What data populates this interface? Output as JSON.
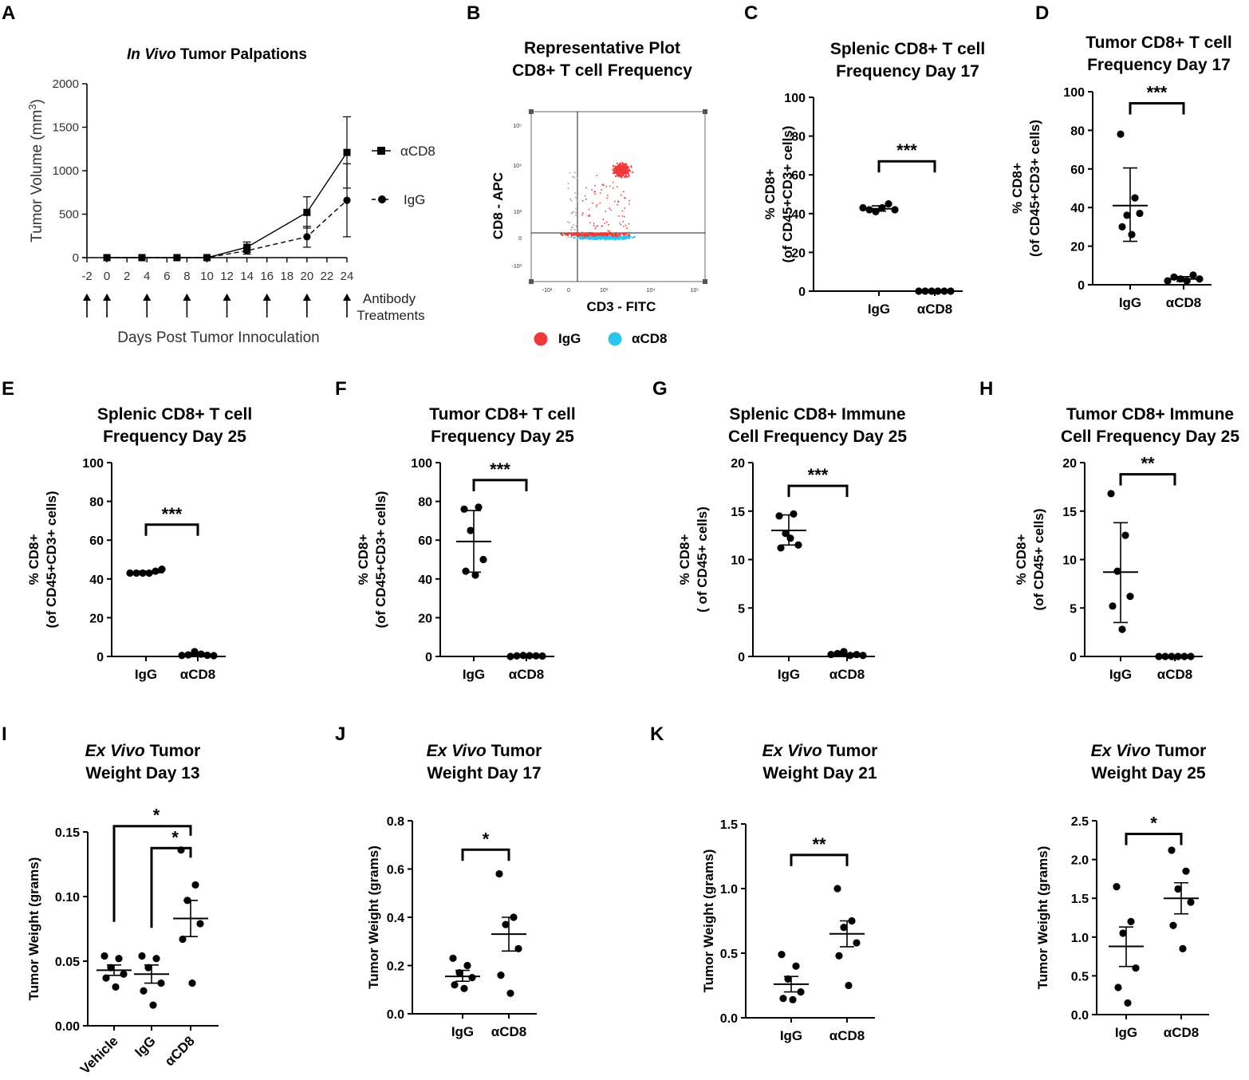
{
  "chart_data": [
    {
      "id": "A",
      "type": "line",
      "panel_label": "A",
      "title_italic": "In Vivo",
      "title_rest": " Tumor Palpations",
      "ylabel": "Tumor Volume (mm",
      "ylabel_sup": "3",
      "ylabel_close": ")",
      "xlabel": "Days Post Tumor Innoculation",
      "ylim": [
        0,
        2000
      ],
      "yticks": [
        "0",
        "500",
        "1000",
        "1500",
        "2000"
      ],
      "xlim": [
        -2,
        24
      ],
      "xticks": [
        "-2",
        "0",
        "2",
        "4",
        "6",
        "8",
        "10",
        "12",
        "14",
        "16",
        "18",
        "20",
        "22",
        "24"
      ],
      "arrow_days": [
        -2,
        0,
        4,
        8,
        12,
        16,
        20,
        24
      ],
      "arrow_label": [
        "Antibody",
        "Treatments"
      ],
      "series": [
        {
          "name": "αCD8",
          "marker": "square",
          "dash": "solid",
          "x": [
            0,
            3.5,
            7,
            10,
            14,
            20,
            24
          ],
          "y": [
            0,
            0,
            0,
            0,
            120,
            520,
            1210
          ],
          "err": [
            0,
            0,
            0,
            0,
            60,
            180,
            410
          ]
        },
        {
          "name": "IgG",
          "marker": "circle",
          "dash": "dashed",
          "x": [
            0,
            3.5,
            7,
            10,
            14,
            20,
            24
          ],
          "y": [
            0,
            0,
            0,
            0,
            80,
            240,
            660
          ],
          "err": [
            0,
            0,
            0,
            0,
            40,
            120,
            420
          ]
        }
      ]
    },
    {
      "id": "B",
      "type": "scatter",
      "panel_label": "B",
      "title": [
        "Representative Plot",
        "CD8+ T cell Frequency"
      ],
      "xlabel": "CD3 - FITC",
      "ylabel": "CD8 - APC",
      "yticks": [
        "10⁵",
        "10⁴",
        "10³",
        "0",
        "-10³"
      ],
      "xticks": [
        "-10³",
        "0",
        "10³",
        "10⁴",
        "10⁵"
      ],
      "legend": [
        {
          "name": "IgG",
          "color": "#f0393b"
        },
        {
          "name": "αCD8",
          "color": "#2fc3ef"
        }
      ]
    },
    {
      "id": "C",
      "type": "scatter",
      "panel_label": "C",
      "title": [
        "Splenic CD8+ T cell",
        "Frequency Day 17"
      ],
      "ylabel": [
        "% CD8+",
        "(of CD45+CD3+ cells)"
      ],
      "ylim": [
        0,
        100
      ],
      "yticks": [
        "0",
        "20",
        "40",
        "60",
        "80",
        "100"
      ],
      "categories": [
        "IgG",
        "αCD8"
      ],
      "groups": [
        {
          "values": [
            43,
            42,
            41,
            43,
            45,
            42
          ],
          "mean": 42.5,
          "err_low": 41.3,
          "err_high": 44
        },
        {
          "values": [
            0,
            0,
            0,
            0,
            0,
            0
          ],
          "mean": 0,
          "err_low": 0,
          "err_high": 0
        }
      ],
      "significance": [
        {
          "from": 0,
          "to": 1,
          "label": "***",
          "y": 67
        }
      ]
    },
    {
      "id": "D",
      "type": "scatter",
      "panel_label": "D",
      "title": [
        "Tumor CD8+ T cell",
        "Frequency Day 17"
      ],
      "ylabel": [
        "% CD8+",
        "(of CD45+CD3+ cells)"
      ],
      "ylim": [
        0,
        100
      ],
      "yticks": [
        "0",
        "20",
        "40",
        "60",
        "80",
        "100"
      ],
      "categories": [
        "IgG",
        "αCD8"
      ],
      "groups": [
        {
          "values": [
            78,
            45,
            36,
            37,
            30,
            26
          ],
          "mean": 41,
          "err_low": 22.5,
          "err_high": 60.5
        },
        {
          "values": [
            2,
            4,
            3,
            2,
            5,
            3
          ],
          "mean": 3,
          "err_low": 1.8,
          "err_high": 4.2
        }
      ],
      "significance": [
        {
          "from": 0,
          "to": 1,
          "label": "***",
          "y": 94
        }
      ]
    },
    {
      "id": "E",
      "type": "scatter",
      "panel_label": "E",
      "title": [
        "Splenic CD8+ T cell",
        "Frequency Day 25"
      ],
      "ylabel": [
        "% CD8+",
        "(of CD45+CD3+ cells)"
      ],
      "ylim": [
        0,
        100
      ],
      "yticks": [
        "0",
        "20",
        "40",
        "60",
        "80",
        "100"
      ],
      "categories": [
        "IgG",
        "αCD8"
      ],
      "groups": [
        {
          "values": [
            43,
            43,
            43,
            43,
            44,
            45
          ],
          "mean": 43.3,
          "err_low": 42.8,
          "err_high": 44
        },
        {
          "values": [
            0.5,
            0.8,
            2.5,
            1.2,
            0.6,
            0.4
          ],
          "mean": 1,
          "err_low": 0.3,
          "err_high": 1.8
        }
      ],
      "significance": [
        {
          "from": 0,
          "to": 1,
          "label": "***",
          "y": 68
        }
      ]
    },
    {
      "id": "F",
      "type": "scatter",
      "panel_label": "F",
      "title": [
        "Tumor CD8+ T cell",
        "Frequency Day 25"
      ],
      "ylabel": [
        "% CD8+",
        "(of CD45+CD3+ cells)"
      ],
      "ylim": [
        0,
        100
      ],
      "yticks": [
        "0",
        "20",
        "40",
        "60",
        "80",
        "100"
      ],
      "categories": [
        "IgG",
        "αCD8"
      ],
      "groups": [
        {
          "values": [
            76,
            77,
            65,
            50,
            44,
            42
          ],
          "mean": 59.3,
          "err_low": 43.5,
          "err_high": 75.3
        },
        {
          "values": [
            0,
            0.3,
            0.5,
            0.4,
            0.3,
            0.2
          ],
          "mean": 0.3,
          "err_low": 0.2,
          "err_high": 0.4
        }
      ],
      "significance": [
        {
          "from": 0,
          "to": 1,
          "label": "***",
          "y": 91
        }
      ]
    },
    {
      "id": "G",
      "type": "scatter",
      "panel_label": "G",
      "title": [
        "Splenic CD8+ Immune",
        "Cell Frequency Day 25"
      ],
      "ylabel": [
        "% CD8+",
        "( of CD45+ cells)"
      ],
      "ylim": [
        0,
        20
      ],
      "yticks": [
        "0",
        "5",
        "10",
        "15",
        "20"
      ],
      "categories": [
        "IgG",
        "αCD8"
      ],
      "groups": [
        {
          "values": [
            14.5,
            14.7,
            12.7,
            11.5,
            11.2,
            12.2
          ],
          "mean": 13,
          "err_low": 11.5,
          "err_high": 14.6
        },
        {
          "values": [
            0.2,
            0.3,
            0.5,
            0.1,
            0.2,
            0.1
          ],
          "mean": 0.2,
          "err_low": 0.1,
          "err_high": 0.3
        }
      ],
      "significance": [
        {
          "from": 0,
          "to": 1,
          "label": "***",
          "y": 17.6
        }
      ]
    },
    {
      "id": "H",
      "type": "scatter",
      "panel_label": "H",
      "title": [
        "Tumor CD8+ Immune",
        "Cell Frequency Day 25"
      ],
      "ylabel": [
        "% CD8+",
        "(of CD45+ cells)"
      ],
      "ylim": [
        0,
        20
      ],
      "yticks": [
        "0",
        "5",
        "10",
        "15",
        "20"
      ],
      "categories": [
        "IgG",
        "αCD8"
      ],
      "groups": [
        {
          "values": [
            16.8,
            12.5,
            8.8,
            6.2,
            5.2,
            2.8
          ],
          "mean": 8.7,
          "err_low": 3.5,
          "err_high": 13.8
        },
        {
          "values": [
            0,
            0,
            0,
            0,
            0,
            0
          ],
          "mean": 0,
          "err_low": 0,
          "err_high": 0
        }
      ],
      "significance": [
        {
          "from": 0,
          "to": 1,
          "label": "**",
          "y": 18.8
        }
      ]
    },
    {
      "id": "I",
      "type": "scatter",
      "panel_label": "I",
      "title_italic": "Ex Vivo",
      "title_rest": " Tumor",
      "title_line2": "Weight Day 13",
      "ylabel": [
        "Tumor Weight (grams)"
      ],
      "ylim": [
        0,
        0.15
      ],
      "yticks": [
        "0.00",
        "0.05",
        "0.10",
        "0.15"
      ],
      "categories": [
        "Vehicle",
        "IgG",
        "αCD8"
      ],
      "rotate_cats": true,
      "groups": [
        {
          "values": [
            0.054,
            0.052,
            0.045,
            0.04,
            0.037,
            0.03
          ],
          "mean": 0.043,
          "err_low": 0.039,
          "err_high": 0.047
        },
        {
          "values": [
            0.054,
            0.052,
            0.045,
            0.033,
            0.027,
            0.016
          ],
          "mean": 0.04,
          "err_low": 0.033,
          "err_high": 0.047
        },
        {
          "values": [
            0.136,
            0.109,
            0.097,
            0.079,
            0.067,
            0.033
          ],
          "mean": 0.083,
          "err_low": 0.069,
          "err_high": 0.097
        }
      ],
      "significance": [
        {
          "from": 0,
          "to": 2,
          "label": "*",
          "y": 0.1545
        },
        {
          "from": 1,
          "to": 2,
          "label": "*",
          "y": 0.1375
        }
      ]
    },
    {
      "id": "J",
      "type": "scatter",
      "panel_label": "J",
      "title_italic": "Ex Vivo",
      "title_rest": " Tumor",
      "title_line2": "Weight Day 17",
      "ylabel": [
        "Tumor Weight (grams)"
      ],
      "ylim": [
        0,
        0.8
      ],
      "yticks": [
        "0.0",
        "0.2",
        "0.4",
        "0.6",
        "0.8"
      ],
      "categories": [
        "IgG",
        "αCD8"
      ],
      "groups": [
        {
          "values": [
            0.23,
            0.2,
            0.17,
            0.15,
            0.12,
            0.105
          ],
          "mean": 0.155,
          "err_low": 0.135,
          "err_high": 0.18
        },
        {
          "values": [
            0.58,
            0.4,
            0.37,
            0.27,
            0.16,
            0.085
          ],
          "mean": 0.33,
          "err_low": 0.26,
          "err_high": 0.4
        },
        {
          "values": [],
          "mean": null
        }
      ],
      "significance": [
        {
          "from": 0,
          "to": 1,
          "label": "*",
          "y": 0.68
        }
      ]
    },
    {
      "id": "K",
      "type": "scatter",
      "panel_label": "K",
      "title_italic": "Ex Vivo",
      "title_rest": " Tumor",
      "title_line2": "Weight Day 21",
      "ylabel": [
        "Tumor Weight (grams)"
      ],
      "ylim": [
        0,
        1.5
      ],
      "yticks": [
        "0.0",
        "0.5",
        "1.0",
        "1.5"
      ],
      "categories": [
        "IgG",
        "αCD8"
      ],
      "groups": [
        {
          "values": [
            0.49,
            0.4,
            0.3,
            0.2,
            0.15,
            0.14
          ],
          "mean": 0.26,
          "err_low": 0.2,
          "err_high": 0.32
        },
        {
          "values": [
            1,
            0.75,
            0.7,
            0.58,
            0.48,
            0.25
          ],
          "mean": 0.65,
          "err_low": 0.55,
          "err_high": 0.75
        }
      ],
      "significance": [
        {
          "from": 0,
          "to": 1,
          "label": "**",
          "y": 1.26
        }
      ]
    },
    {
      "id": "L",
      "type": "scatter",
      "panel_label": "",
      "title_italic": "Ex Vivo",
      "title_rest": " Tumor",
      "title_line2": "Weight Day 25",
      "ylabel": [
        "Tumor Weight (grams)"
      ],
      "ylim": [
        0,
        2.5
      ],
      "yticks": [
        "0.0",
        "0.5",
        "1.0",
        "1.5",
        "2.0",
        "2.5"
      ],
      "categories": [
        "IgG",
        "αCD8"
      ],
      "groups": [
        {
          "values": [
            1.65,
            1.2,
            1.05,
            0.6,
            0.35,
            0.15
          ],
          "mean": 0.88,
          "err_low": 0.62,
          "err_high": 1.13
        },
        {
          "values": [
            2.12,
            1.85,
            1.62,
            1.45,
            1.15,
            0.85
          ],
          "mean": 1.5,
          "err_low": 1.3,
          "err_high": 1.7
        }
      ],
      "significance": [
        {
          "from": 0,
          "to": 1,
          "label": "*",
          "y": 2.33
        }
      ]
    }
  ]
}
